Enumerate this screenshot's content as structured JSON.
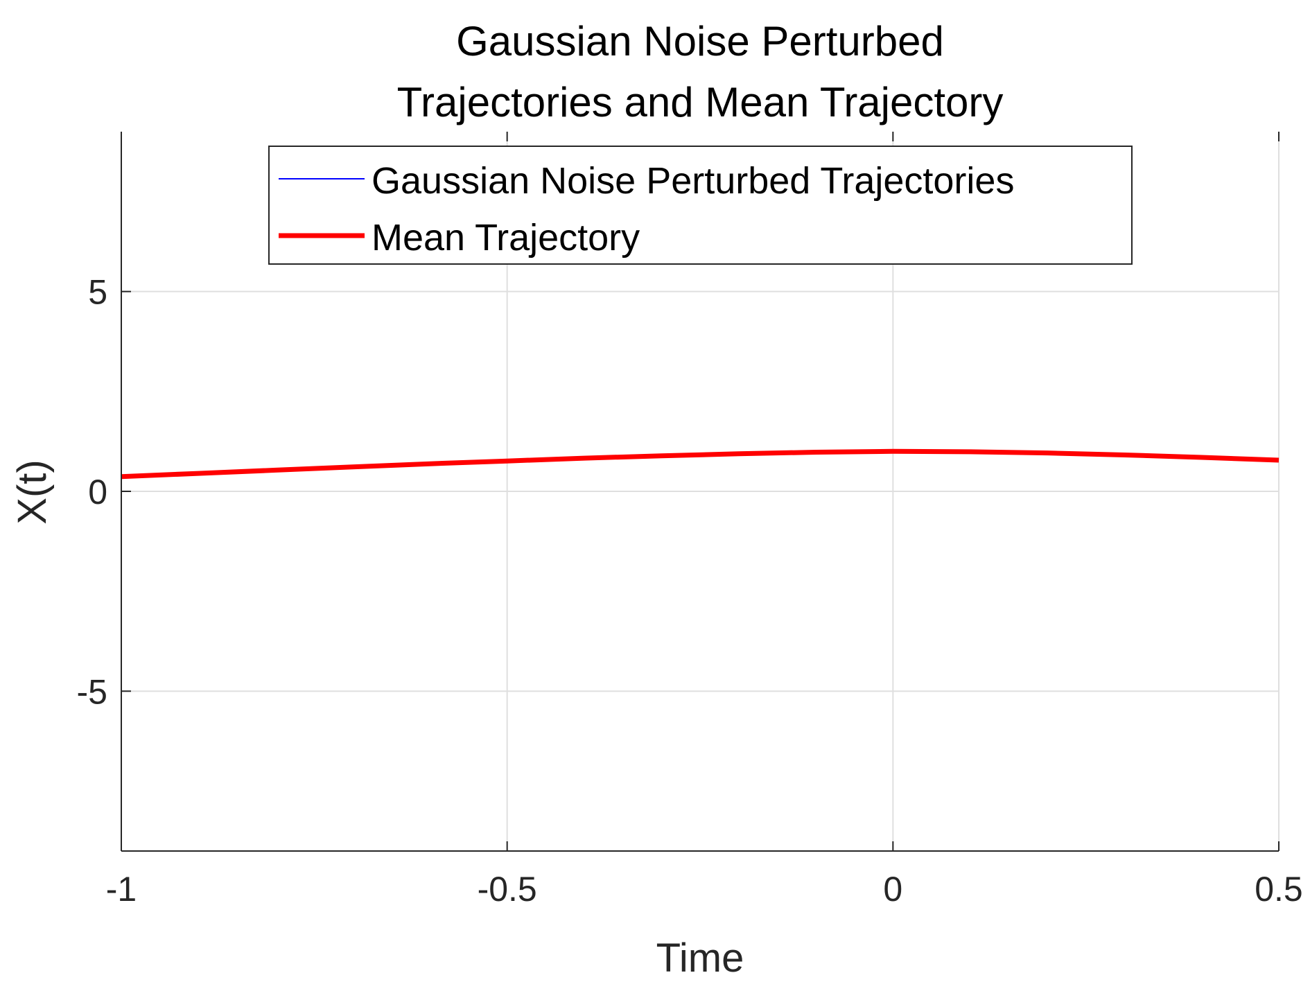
{
  "chart_data": {
    "type": "line",
    "title": [
      "Gaussian Noise Perturbed",
      "Trajectories and Mean Trajectory"
    ],
    "xlabel": "Time",
    "ylabel": "X(t)",
    "xlim": [
      -1,
      0.5
    ],
    "ylim": [
      -9,
      9
    ],
    "xticks": [
      -1,
      -0.5,
      0,
      0.5
    ],
    "xtick_labels": [
      "-1",
      "-0.5",
      "0",
      "0.5"
    ],
    "yticks": [
      -5,
      0,
      5
    ],
    "ytick_labels": [
      "-5",
      "0",
      "5"
    ],
    "grid": true,
    "legend_position": "top",
    "series": [
      {
        "name": "Gaussian Noise Perturbed Trajectories",
        "color": "#0000ff",
        "x": [],
        "y": []
      },
      {
        "name": "Mean Trajectory",
        "color": "#ff0000",
        "x": [
          -1.0,
          -0.9,
          -0.8,
          -0.7,
          -0.6,
          -0.5,
          -0.4,
          -0.3,
          -0.2,
          -0.1,
          0.0,
          0.1,
          0.2,
          0.3,
          0.4,
          0.5
        ],
        "y": [
          0.37,
          0.45,
          0.53,
          0.61,
          0.69,
          0.76,
          0.83,
          0.89,
          0.94,
          0.98,
          1.0,
          0.99,
          0.96,
          0.91,
          0.85,
          0.78
        ]
      }
    ]
  }
}
